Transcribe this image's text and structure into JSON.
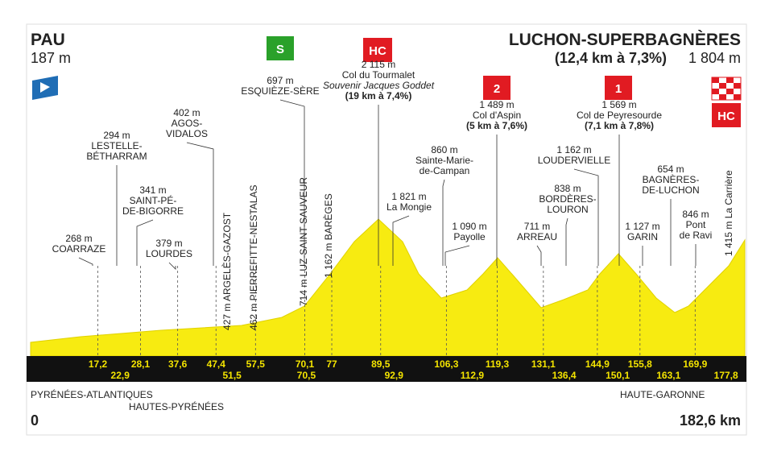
{
  "header": {
    "start": {
      "name": "PAU",
      "elevation": "187 m"
    },
    "finish": {
      "name": "LUCHON-SUPERBAGNÈRES",
      "climb": "(12,4 km à 7,3%)",
      "elevation": "1 804 m"
    }
  },
  "icons": {
    "sprint": "S",
    "tourmalet": "HC",
    "aspin": "2",
    "peyresourde": "1",
    "finish": "HC"
  },
  "waypoints": [
    {
      "elevation": "268 m",
      "name": [
        "COARRAZE"
      ]
    },
    {
      "elevation": "294 m",
      "name": [
        "LESTELLE-",
        "BÉTHARRAM"
      ]
    },
    {
      "elevation": "341 m",
      "name": [
        "SAINT-PÉ-",
        "DE-BIGORRE"
      ]
    },
    {
      "elevation": "379 m",
      "name": [
        "LOURDES"
      ]
    },
    {
      "elevation": "402 m",
      "name": [
        "AGOS-",
        "VIDALOS"
      ]
    },
    {
      "elevation": "697 m",
      "name": [
        "ESQUIÈZE-SÈRE"
      ]
    },
    {
      "elevation": "2 115 m",
      "name": [
        "Col du Tourmalet"
      ],
      "note": "Souvenir Jacques Goddet",
      "climb": "(19 km à 7,4%)"
    },
    {
      "elevation": "1 821 m",
      "name": [
        "La Mongie"
      ]
    },
    {
      "elevation": "860 m",
      "name": [
        "Sainte-Marie-",
        "de-Campan"
      ]
    },
    {
      "elevation": "1 090 m",
      "name": [
        "Payolle"
      ]
    },
    {
      "elevation": "1 489 m",
      "name": [
        "Col d'Aspin"
      ],
      "climb": "(5 km à 7,6%)"
    },
    {
      "elevation": "711 m",
      "name": [
        "ARREAU"
      ]
    },
    {
      "elevation": "838 m",
      "name": [
        "BORDÈRES-",
        "LOURON"
      ]
    },
    {
      "elevation": "1 162 m",
      "name": [
        "LOUDERVIELLE"
      ]
    },
    {
      "elevation": "1 569 m",
      "name": [
        "Col de Peyresourde"
      ],
      "climb": "(7,1 km à 7,8%)"
    },
    {
      "elevation": "1 127 m",
      "name": [
        "GARIN"
      ]
    },
    {
      "elevation": "654 m",
      "name": [
        "BAGNÈRES-",
        "DE-LUCHON"
      ]
    },
    {
      "elevation": "846 m",
      "name": [
        "Pont",
        "de Ravi"
      ]
    }
  ],
  "vertical_waypoints": [
    "427 m ARGELÈS-GAZOST",
    "462 m PIERREFITTE-NESTALAS",
    "714 m LUZ-SAINT-SAUVEUR",
    "1 162 m BARÈGES",
    "1 415 m La Carrière"
  ],
  "km_upper": [
    "17,2",
    "28,1",
    "37,6",
    "47,4",
    "57,5",
    "70,1",
    "77",
    "89,5",
    "106,3",
    "119,3",
    "131,1",
    "144,9",
    "155,8",
    "169,9"
  ],
  "km_lower": [
    "22,9",
    "51,5",
    "70,5",
    "92,9",
    "112,9",
    "136,4",
    "150,1",
    "163,1",
    "177,8"
  ],
  "regions": [
    "PYRÉNÉES-ATLANTIQUES",
    "HAUTES-PYRÉNÉES",
    "HAUTE-GARONNE"
  ],
  "distance": {
    "start": "0",
    "end": "182,6 km"
  }
}
